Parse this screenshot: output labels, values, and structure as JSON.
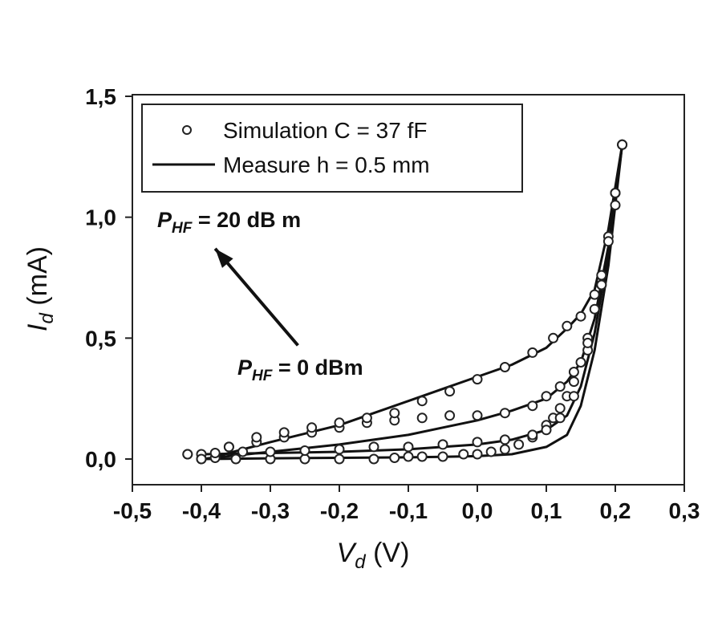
{
  "chart_data": {
    "type": "line",
    "xlabel": {
      "main": "V",
      "sub": "d",
      "unit": "(V)"
    },
    "ylabel": {
      "main": "I",
      "sub": "d",
      "unit": "(mA)"
    },
    "xlim": [
      -0.5,
      0.3
    ],
    "ylim": [
      -0.1,
      1.5
    ],
    "x_ticks": [
      -0.5,
      -0.4,
      -0.3,
      -0.2,
      -0.1,
      0.0,
      0.1,
      0.2,
      0.3
    ],
    "x_tick_labels": [
      "-0,5",
      "-0,4",
      "-0,3",
      "-0,2",
      "-0,1",
      "0,0",
      "0,1",
      "0,2",
      "0,3"
    ],
    "y_ticks": [
      0.0,
      0.5,
      1.0,
      1.5
    ],
    "y_tick_labels": [
      "0,0",
      "0,5",
      "1,0",
      "1,5"
    ],
    "grid": false,
    "legend": {
      "placement": "top-left",
      "entries": [
        {
          "marker": "circle",
          "label": "Simulation C = 37  fF"
        },
        {
          "marker": "line",
          "label": "Measure h = 0.5 mm"
        }
      ]
    },
    "annotations": {
      "p_high": {
        "main": "P",
        "sub": "HF",
        "rest": " = 20  dB m"
      },
      "p_low": {
        "main": "P",
        "sub": "HF",
        "rest": " = 0  dBm"
      },
      "arrow": {
        "from": [
          -0.26,
          0.47
        ],
        "to": [
          -0.38,
          0.87
        ]
      }
    },
    "series": [
      {
        "marker": "line",
        "curves": [
          {
            "x": [
              -0.4,
              -0.3,
              -0.2,
              -0.1,
              -0.05,
              0.0,
              0.05,
              0.1,
              0.13,
              0.15,
              0.17,
              0.19,
              0.21
            ],
            "y": [
              0.0,
              0.003,
              0.005,
              0.007,
              0.009,
              0.012,
              0.02,
              0.05,
              0.1,
              0.22,
              0.45,
              0.8,
              1.3
            ]
          },
          {
            "x": [
              -0.4,
              -0.3,
              -0.2,
              -0.1,
              0.0,
              0.05,
              0.1,
              0.13,
              0.15,
              0.17,
              0.19,
              0.21
            ],
            "y": [
              0.02,
              0.025,
              0.03,
              0.04,
              0.06,
              0.08,
              0.12,
              0.18,
              0.3,
              0.52,
              0.85,
              1.3
            ]
          },
          {
            "x": [
              -0.4,
              -0.3,
              -0.2,
              -0.1,
              -0.05,
              0.0,
              0.05,
              0.1,
              0.13,
              0.15,
              0.17,
              0.19,
              0.21
            ],
            "y": [
              0.0,
              0.03,
              0.06,
              0.1,
              0.13,
              0.16,
              0.2,
              0.25,
              0.32,
              0.4,
              0.58,
              0.88,
              1.3
            ]
          },
          {
            "x": [
              -0.38,
              -0.3,
              -0.2,
              -0.15,
              -0.1,
              -0.05,
              0.0,
              0.05,
              0.1,
              0.13,
              0.15,
              0.17,
              0.19,
              0.21
            ],
            "y": [
              0.01,
              0.07,
              0.14,
              0.19,
              0.24,
              0.29,
              0.34,
              0.39,
              0.46,
              0.54,
              0.6,
              0.7,
              0.95,
              1.3
            ]
          }
        ]
      },
      {
        "marker": "circle",
        "curves": [
          {
            "x": [
              -0.42,
              -0.4,
              -0.38,
              -0.35,
              -0.3,
              -0.25,
              -0.2,
              -0.15,
              -0.12,
              -0.1,
              -0.08,
              -0.05,
              -0.02,
              0.0,
              0.02,
              0.04,
              0.06,
              0.08,
              0.1,
              0.11,
              0.12,
              0.13,
              0.14,
              0.15,
              0.16,
              0.17,
              0.18,
              0.19,
              0.2,
              0.21
            ],
            "y": [
              0.02,
              0.0,
              0.005,
              0.0,
              0.0,
              0.0,
              0.0,
              0.0,
              0.005,
              0.01,
              0.01,
              0.01,
              0.02,
              0.02,
              0.03,
              0.04,
              0.06,
              0.09,
              0.14,
              0.17,
              0.21,
              0.26,
              0.32,
              0.4,
              0.5,
              0.62,
              0.76,
              0.92,
              1.1,
              1.3
            ]
          },
          {
            "x": [
              -0.42,
              -0.38,
              -0.34,
              -0.3,
              -0.25,
              -0.2,
              -0.15,
              -0.1,
              -0.05,
              0.0,
              0.04,
              0.08,
              0.1,
              0.12,
              0.14,
              0.16,
              0.18,
              0.2,
              0.21
            ],
            "y": [
              0.02,
              0.025,
              0.03,
              0.03,
              0.035,
              0.04,
              0.05,
              0.05,
              0.06,
              0.07,
              0.08,
              0.1,
              0.12,
              0.17,
              0.26,
              0.45,
              0.72,
              1.05,
              1.3
            ]
          },
          {
            "x": [
              -0.4,
              -0.36,
              -0.32,
              -0.28,
              -0.24,
              -0.2,
              -0.16,
              -0.12,
              -0.08,
              -0.04,
              0.0,
              0.04,
              0.08,
              0.1,
              0.12,
              0.14,
              0.16,
              0.18,
              0.2
            ],
            "y": [
              0.02,
              0.05,
              0.07,
              0.09,
              0.11,
              0.13,
              0.15,
              0.16,
              0.17,
              0.18,
              0.18,
              0.19,
              0.22,
              0.26,
              0.3,
              0.36,
              0.48,
              0.72,
              1.1
            ]
          },
          {
            "x": [
              -0.4,
              -0.36,
              -0.32,
              -0.28,
              -0.24,
              -0.2,
              -0.16,
              -0.12,
              -0.08,
              -0.04,
              0.0,
              0.04,
              0.08,
              0.11,
              0.13,
              0.15,
              0.17,
              0.19,
              0.21
            ],
            "y": [
              0.0,
              0.05,
              0.09,
              0.11,
              0.13,
              0.15,
              0.17,
              0.19,
              0.24,
              0.28,
              0.33,
              0.38,
              0.44,
              0.5,
              0.55,
              0.59,
              0.68,
              0.9,
              1.3
            ]
          }
        ]
      }
    ]
  }
}
